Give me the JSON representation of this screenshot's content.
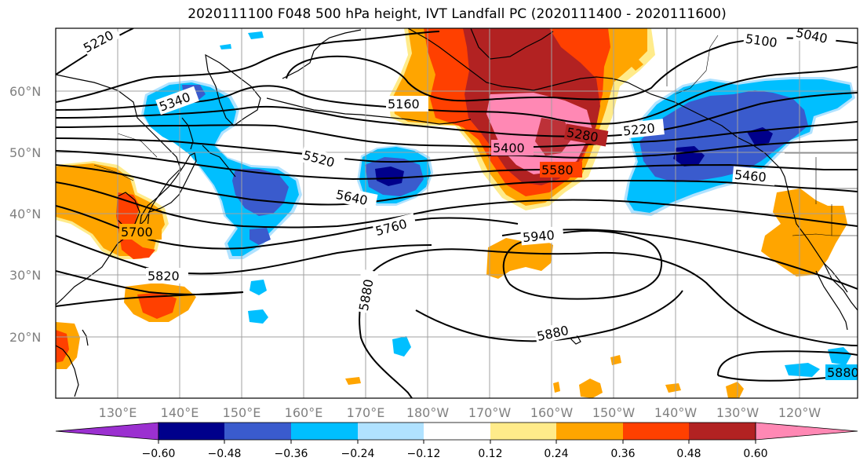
{
  "title": "2020111100 F048 500 hPa height, IVT Landfall PC (2020111400 - 2020111600)",
  "lat_labels": [
    "60°N",
    "50°N",
    "40°N",
    "30°N",
    "20°N"
  ],
  "lon_labels": [
    "130°E",
    "140°E",
    "150°E",
    "160°E",
    "170°E",
    "180°W",
    "170°W",
    "160°W",
    "150°W",
    "140°W",
    "130°W",
    "120°W"
  ],
  "contour_labels": [
    "5220",
    "5340",
    "5160",
    "5100",
    "5040",
    "5400",
    "5280",
    "5220",
    "5520",
    "5580",
    "5640",
    "5460",
    "5760",
    "5700",
    "5940",
    "5820",
    "5880",
    "5880",
    "5880"
  ],
  "colorbar": {
    "ticks": [
      "−0.60",
      "−0.48",
      "−0.36",
      "−0.24",
      "−0.12",
      "0.12",
      "0.24",
      "0.36",
      "0.48",
      "0.60"
    ],
    "colors": [
      "#9b30d0",
      "#00008b",
      "#3a5bcd",
      "#00bfff",
      "#b0e2ff",
      "#ffffff",
      "#ffeb8a",
      "#ffa500",
      "#ff4000",
      "#b22222",
      "#ff88b4"
    ]
  },
  "shading_colors": {
    "neg_light": "#b0e2ff",
    "neg_mid": "#00bfff",
    "neg_strong": "#3a5bcd",
    "neg_max": "#00008b",
    "pos_light": "#ffeb8a",
    "pos_mid": "#ffa500",
    "pos_strong": "#ff4000",
    "pos_darker": "#b22222",
    "pos_max": "#ff88b4"
  }
}
